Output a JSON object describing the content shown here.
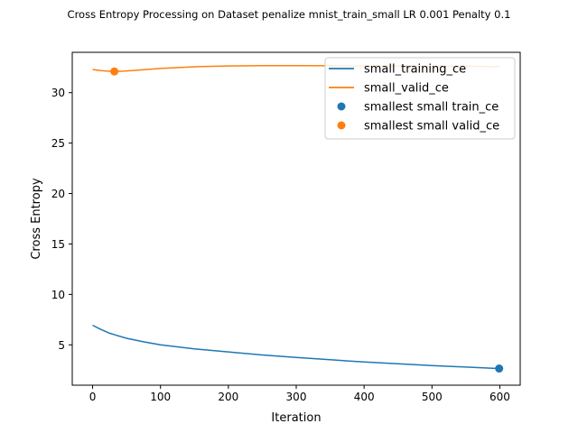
{
  "chart_data": {
    "type": "line",
    "title": "Cross Entropy Processing on Dataset penalize mnist_train_small  LR 0.001 Penalty 0.1",
    "xlabel": "Iteration",
    "ylabel": "Cross Entropy",
    "xlim": [
      -30,
      630
    ],
    "ylim": [
      1,
      34
    ],
    "xticks": [
      0,
      100,
      200,
      300,
      400,
      500,
      600
    ],
    "yticks": [
      5,
      10,
      15,
      20,
      25,
      30
    ],
    "grid": false,
    "legend_position": "top-right",
    "series": [
      {
        "name": "small_training_ce",
        "color": "#1f77b4",
        "x": [
          0,
          10,
          25,
          50,
          75,
          100,
          150,
          200,
          250,
          300,
          350,
          400,
          450,
          500,
          550,
          600
        ],
        "y": [
          6.95,
          6.6,
          6.15,
          5.65,
          5.3,
          5.0,
          4.6,
          4.3,
          4.0,
          3.75,
          3.52,
          3.3,
          3.12,
          2.95,
          2.8,
          2.65
        ]
      },
      {
        "name": "small_valid_ce",
        "color": "#ff7f0e",
        "x": [
          0,
          10,
          20,
          32,
          45,
          60,
          80,
          100,
          130,
          160,
          200,
          250,
          300,
          350,
          400,
          450,
          500,
          550,
          600
        ],
        "y": [
          32.3,
          32.2,
          32.15,
          32.1,
          32.13,
          32.2,
          32.3,
          32.4,
          32.5,
          32.6,
          32.65,
          32.68,
          32.68,
          32.67,
          32.65,
          32.63,
          32.62,
          32.61,
          32.6
        ]
      }
    ],
    "markers": [
      {
        "name": "smallest small train_ce",
        "color": "#1f77b4",
        "x": 599,
        "y": 2.65
      },
      {
        "name": "smallest small valid_ce",
        "color": "#ff7f0e",
        "x": 32,
        "y": 32.1
      }
    ]
  }
}
